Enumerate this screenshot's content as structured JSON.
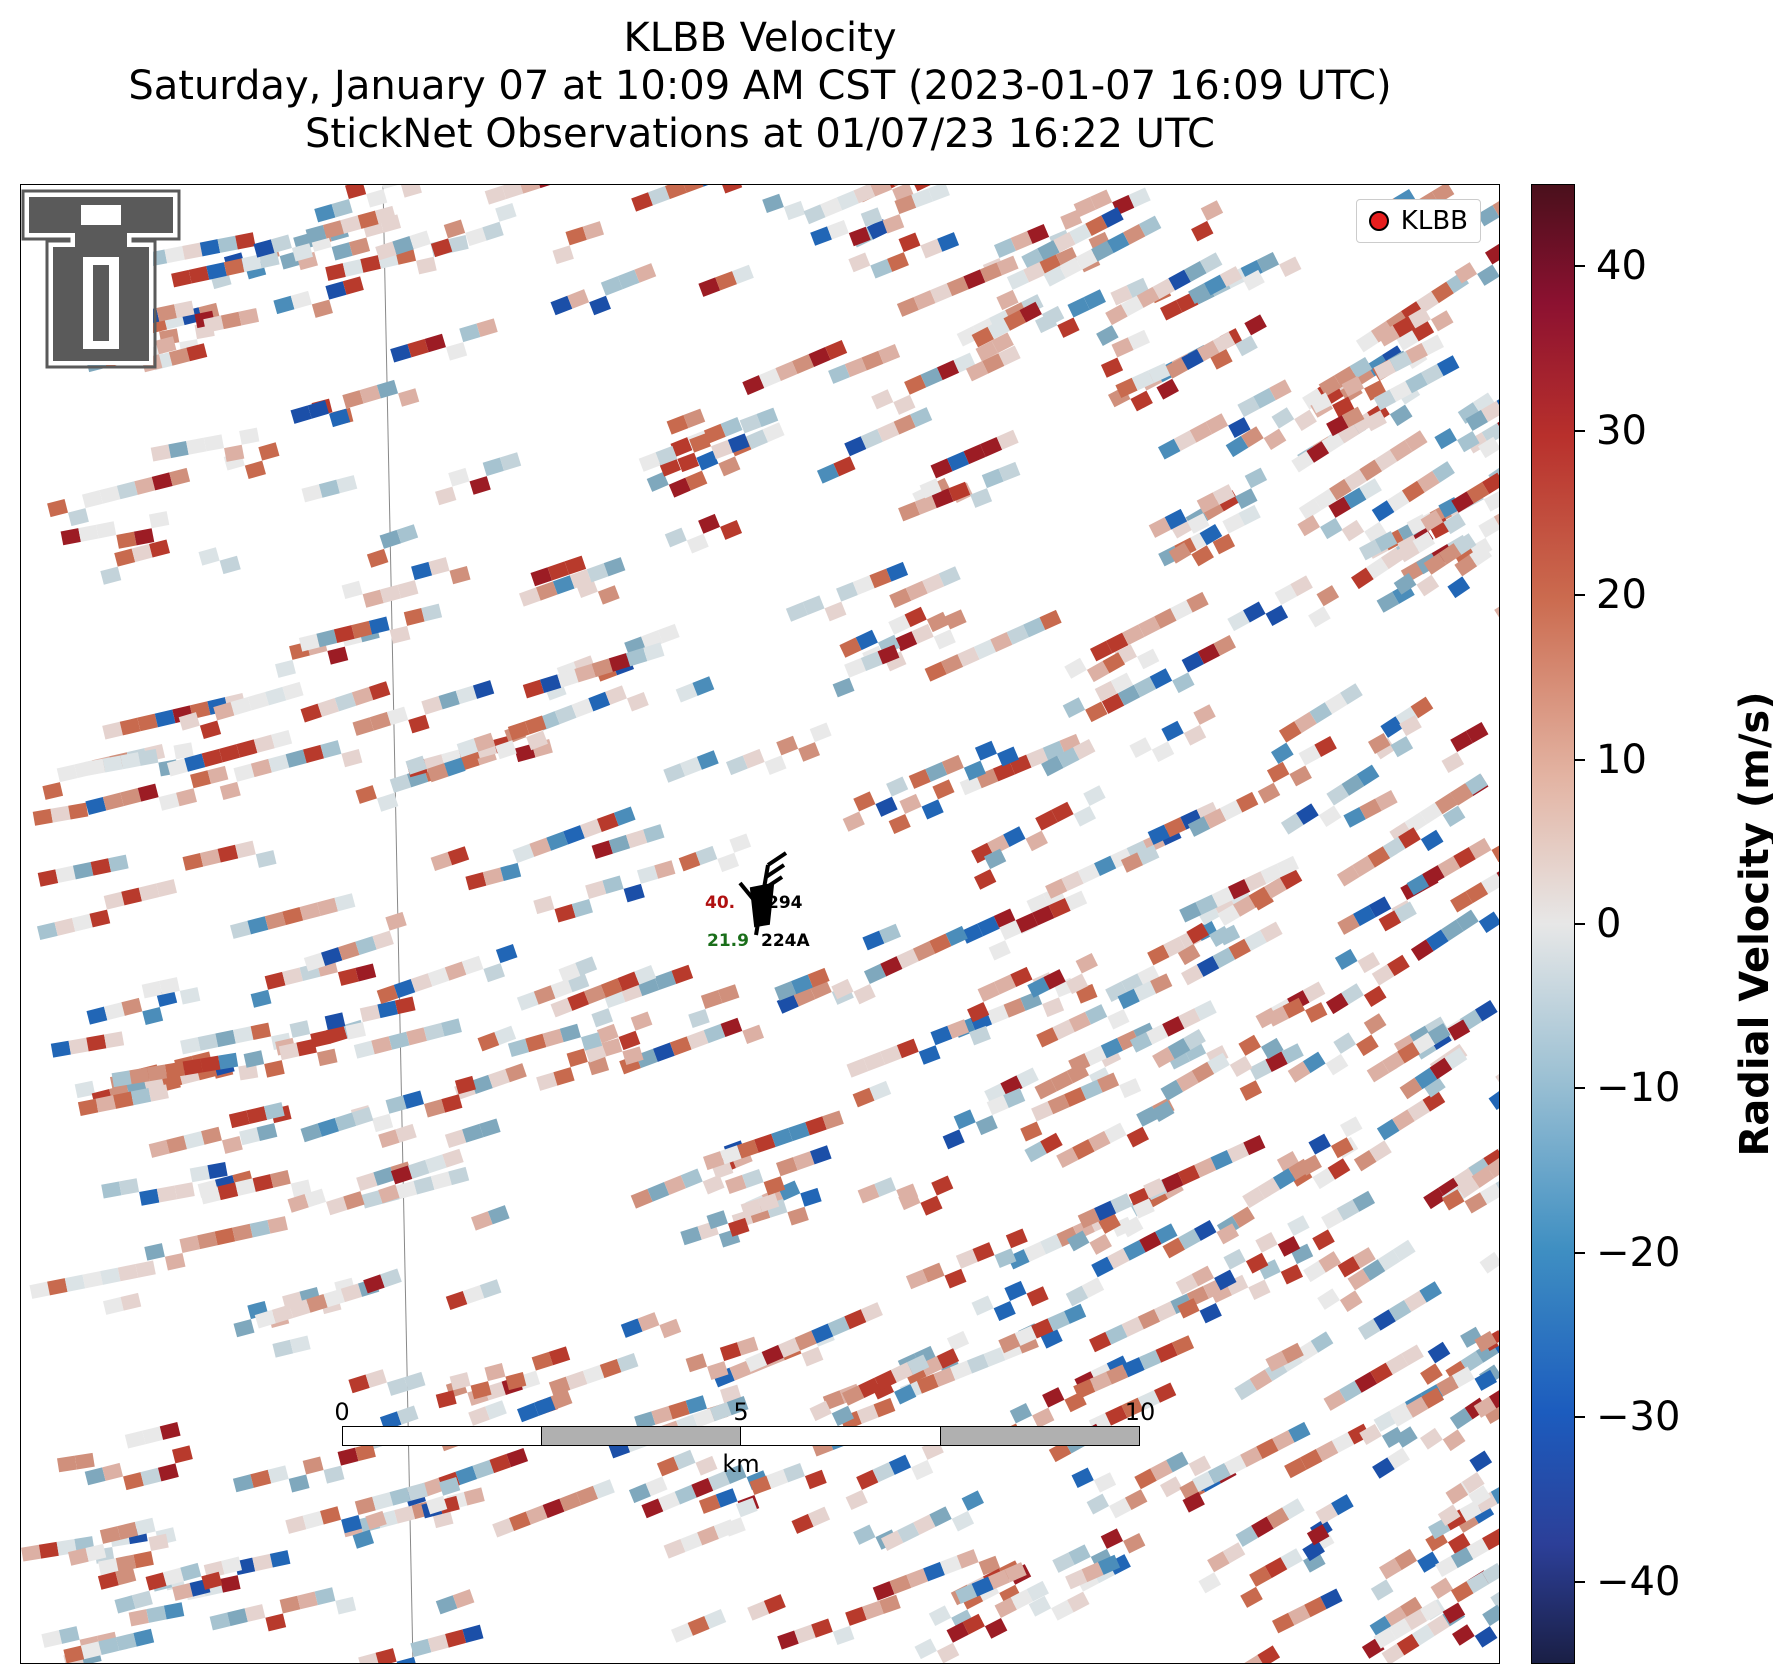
{
  "title": {
    "line1": "KLBB Velocity",
    "line2": "Saturday, January 07 at 10:09 AM CST (2023-01-07 16:09 UTC)",
    "line3": "StickNet Observations at 01/07/23 16:22 UTC"
  },
  "legend": {
    "label": "KLBB",
    "marker_color": "#e61e1e"
  },
  "stations": [
    {
      "id": "294",
      "temp": "40.",
      "temp_color": "#b01010"
    },
    {
      "id": "224A",
      "temp": "21.9",
      "temp_color": "#1a6e1a"
    }
  ],
  "scalebar": {
    "ticks": [
      "0",
      "5",
      "10"
    ],
    "unit": "km"
  },
  "colorbar": {
    "label": "Radial Velocity (m/s)",
    "ticks": [
      "40",
      "30",
      "20",
      "10",
      "0",
      "−10",
      "−20",
      "−30",
      "−40"
    ],
    "range": [
      -45,
      45
    ]
  },
  "logo": {
    "icon": "texas-tech-double-t-logo"
  }
}
